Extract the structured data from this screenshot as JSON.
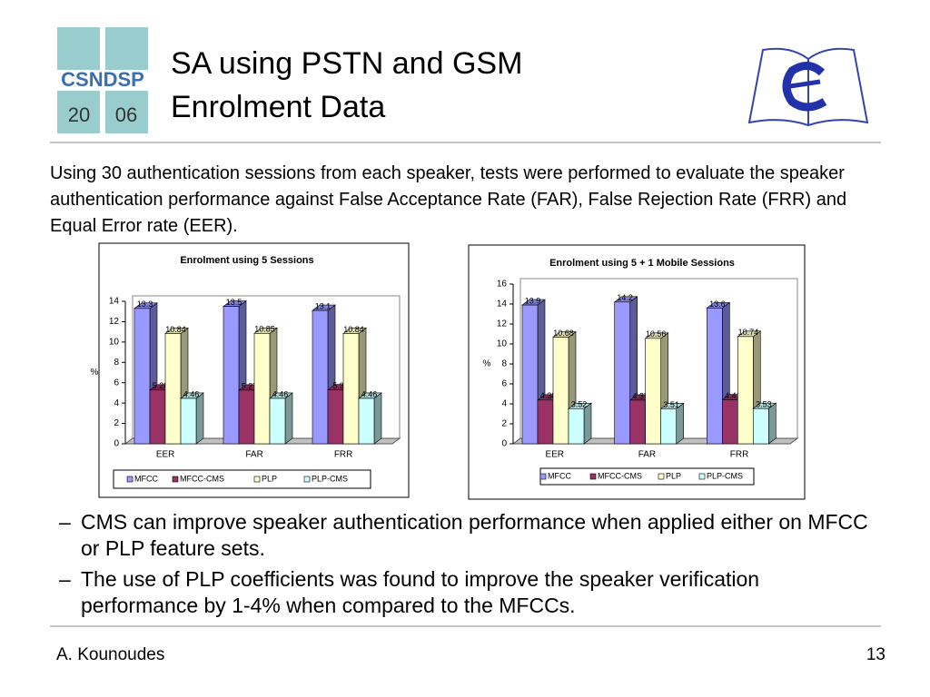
{
  "logo": {
    "name": "CSNDSP",
    "year_left": "20",
    "year_right": "06"
  },
  "header": {
    "title_line1": "SA using PSTN and GSM",
    "title_line2": "Enrolment Data"
  },
  "intro": "Using 30 authentication sessions from each speaker, tests were performed to evaluate the speaker authentication performance against False Acceptance Rate (FAR), False Rejection Rate (FRR) and Equal Error rate (EER).",
  "chart_data": [
    {
      "type": "bar",
      "title": "Enrolment using 5 Sessions",
      "y_label": "%",
      "categories": [
        "EER",
        "FAR",
        "FRR"
      ],
      "series": [
        {
          "name": "MFCC",
          "color": "#9999ff",
          "values": [
            13.3,
            13.5,
            13.1
          ]
        },
        {
          "name": "MFCC-CMS",
          "color": "#993366",
          "values": [
            5.28,
            5.27,
            5.3
          ]
        },
        {
          "name": "PLP",
          "color": "#ffffcc",
          "values": [
            10.84,
            10.85,
            10.84
          ]
        },
        {
          "name": "PLP-CMS",
          "color": "#ccffff",
          "values": [
            4.46,
            4.46,
            4.46
          ]
        }
      ],
      "ylim": [
        0,
        14
      ],
      "yticks": [
        0,
        2,
        4,
        6,
        8,
        10,
        12,
        14
      ],
      "legend": "bottom"
    },
    {
      "type": "bar",
      "title": "Enrolment using 5 + 1 Mobile Sessions",
      "y_label": "%",
      "categories": [
        "EER",
        "FAR",
        "FRR"
      ],
      "series": [
        {
          "name": "MFCC",
          "color": "#9999ff",
          "values": [
            13.9,
            14.2,
            13.6
          ]
        },
        {
          "name": "MFCC-CMS",
          "color": "#993366",
          "values": [
            4.38,
            4.37,
            4.41
          ]
        },
        {
          "name": "PLP",
          "color": "#ffffcc",
          "values": [
            10.68,
            10.56,
            10.74
          ]
        },
        {
          "name": "PLP-CMS",
          "color": "#ccffff",
          "values": [
            3.52,
            3.51,
            3.53
          ]
        }
      ],
      "ylim": [
        0,
        16
      ],
      "yticks": [
        0,
        2,
        4,
        6,
        8,
        10,
        12,
        14,
        16
      ],
      "legend": "bottom"
    }
  ],
  "bullets": [
    {
      "marker": "–",
      "text": "CMS can improve speaker authentication performance when applied either on MFCC or PLP feature sets."
    },
    {
      "marker": "–",
      "text": "The use of PLP coefficients was found to improve the speaker verification performance by 1-4% when compared to the MFCCs."
    }
  ],
  "footer": {
    "author": "A. Kounoudes",
    "page": "13"
  }
}
